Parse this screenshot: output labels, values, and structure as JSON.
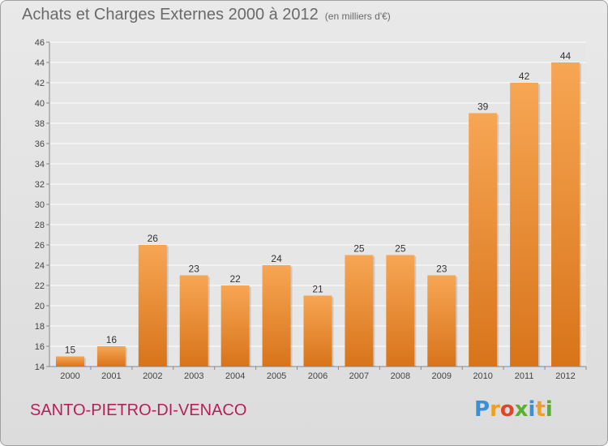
{
  "header": {
    "title": "Achats et Charges Externes 2000 à 2012",
    "unit": "(en milliers d'€)"
  },
  "footer": {
    "commune": "SANTO-PIETRO-DI-VENACO",
    "logo_letters": [
      {
        "ch": "P",
        "color": "#3a8fd6"
      },
      {
        "ch": "r",
        "color": "#f0a020"
      },
      {
        "ch": "o",
        "color": "#e0442a"
      },
      {
        "ch": "x",
        "color": "#58b030"
      },
      {
        "ch": "i",
        "color": "#3a8fd6"
      },
      {
        "ch": "t",
        "color": "#f0a020"
      },
      {
        "ch": "i",
        "color": "#58b030"
      }
    ]
  },
  "colors": {
    "bar_light": "#f7a654",
    "bar_dark": "#d8741a",
    "accent_commune": "#b81e5a"
  },
  "chart_data": {
    "type": "bar",
    "title": "Achats et Charges Externes 2000 à 2012",
    "unit": "(en milliers d'€)",
    "categories": [
      "2000",
      "2001",
      "2002",
      "2003",
      "2004",
      "2005",
      "2006",
      "2007",
      "2008",
      "2009",
      "2010",
      "2011",
      "2012"
    ],
    "values": [
      15,
      16,
      26,
      23,
      22,
      24,
      21,
      25,
      25,
      23,
      39,
      42,
      44
    ],
    "ylim": [
      14,
      46
    ],
    "yticks": [
      14,
      16,
      18,
      20,
      22,
      24,
      26,
      28,
      30,
      32,
      34,
      36,
      38,
      40,
      42,
      44,
      46
    ],
    "grid": true,
    "legend": "none"
  }
}
